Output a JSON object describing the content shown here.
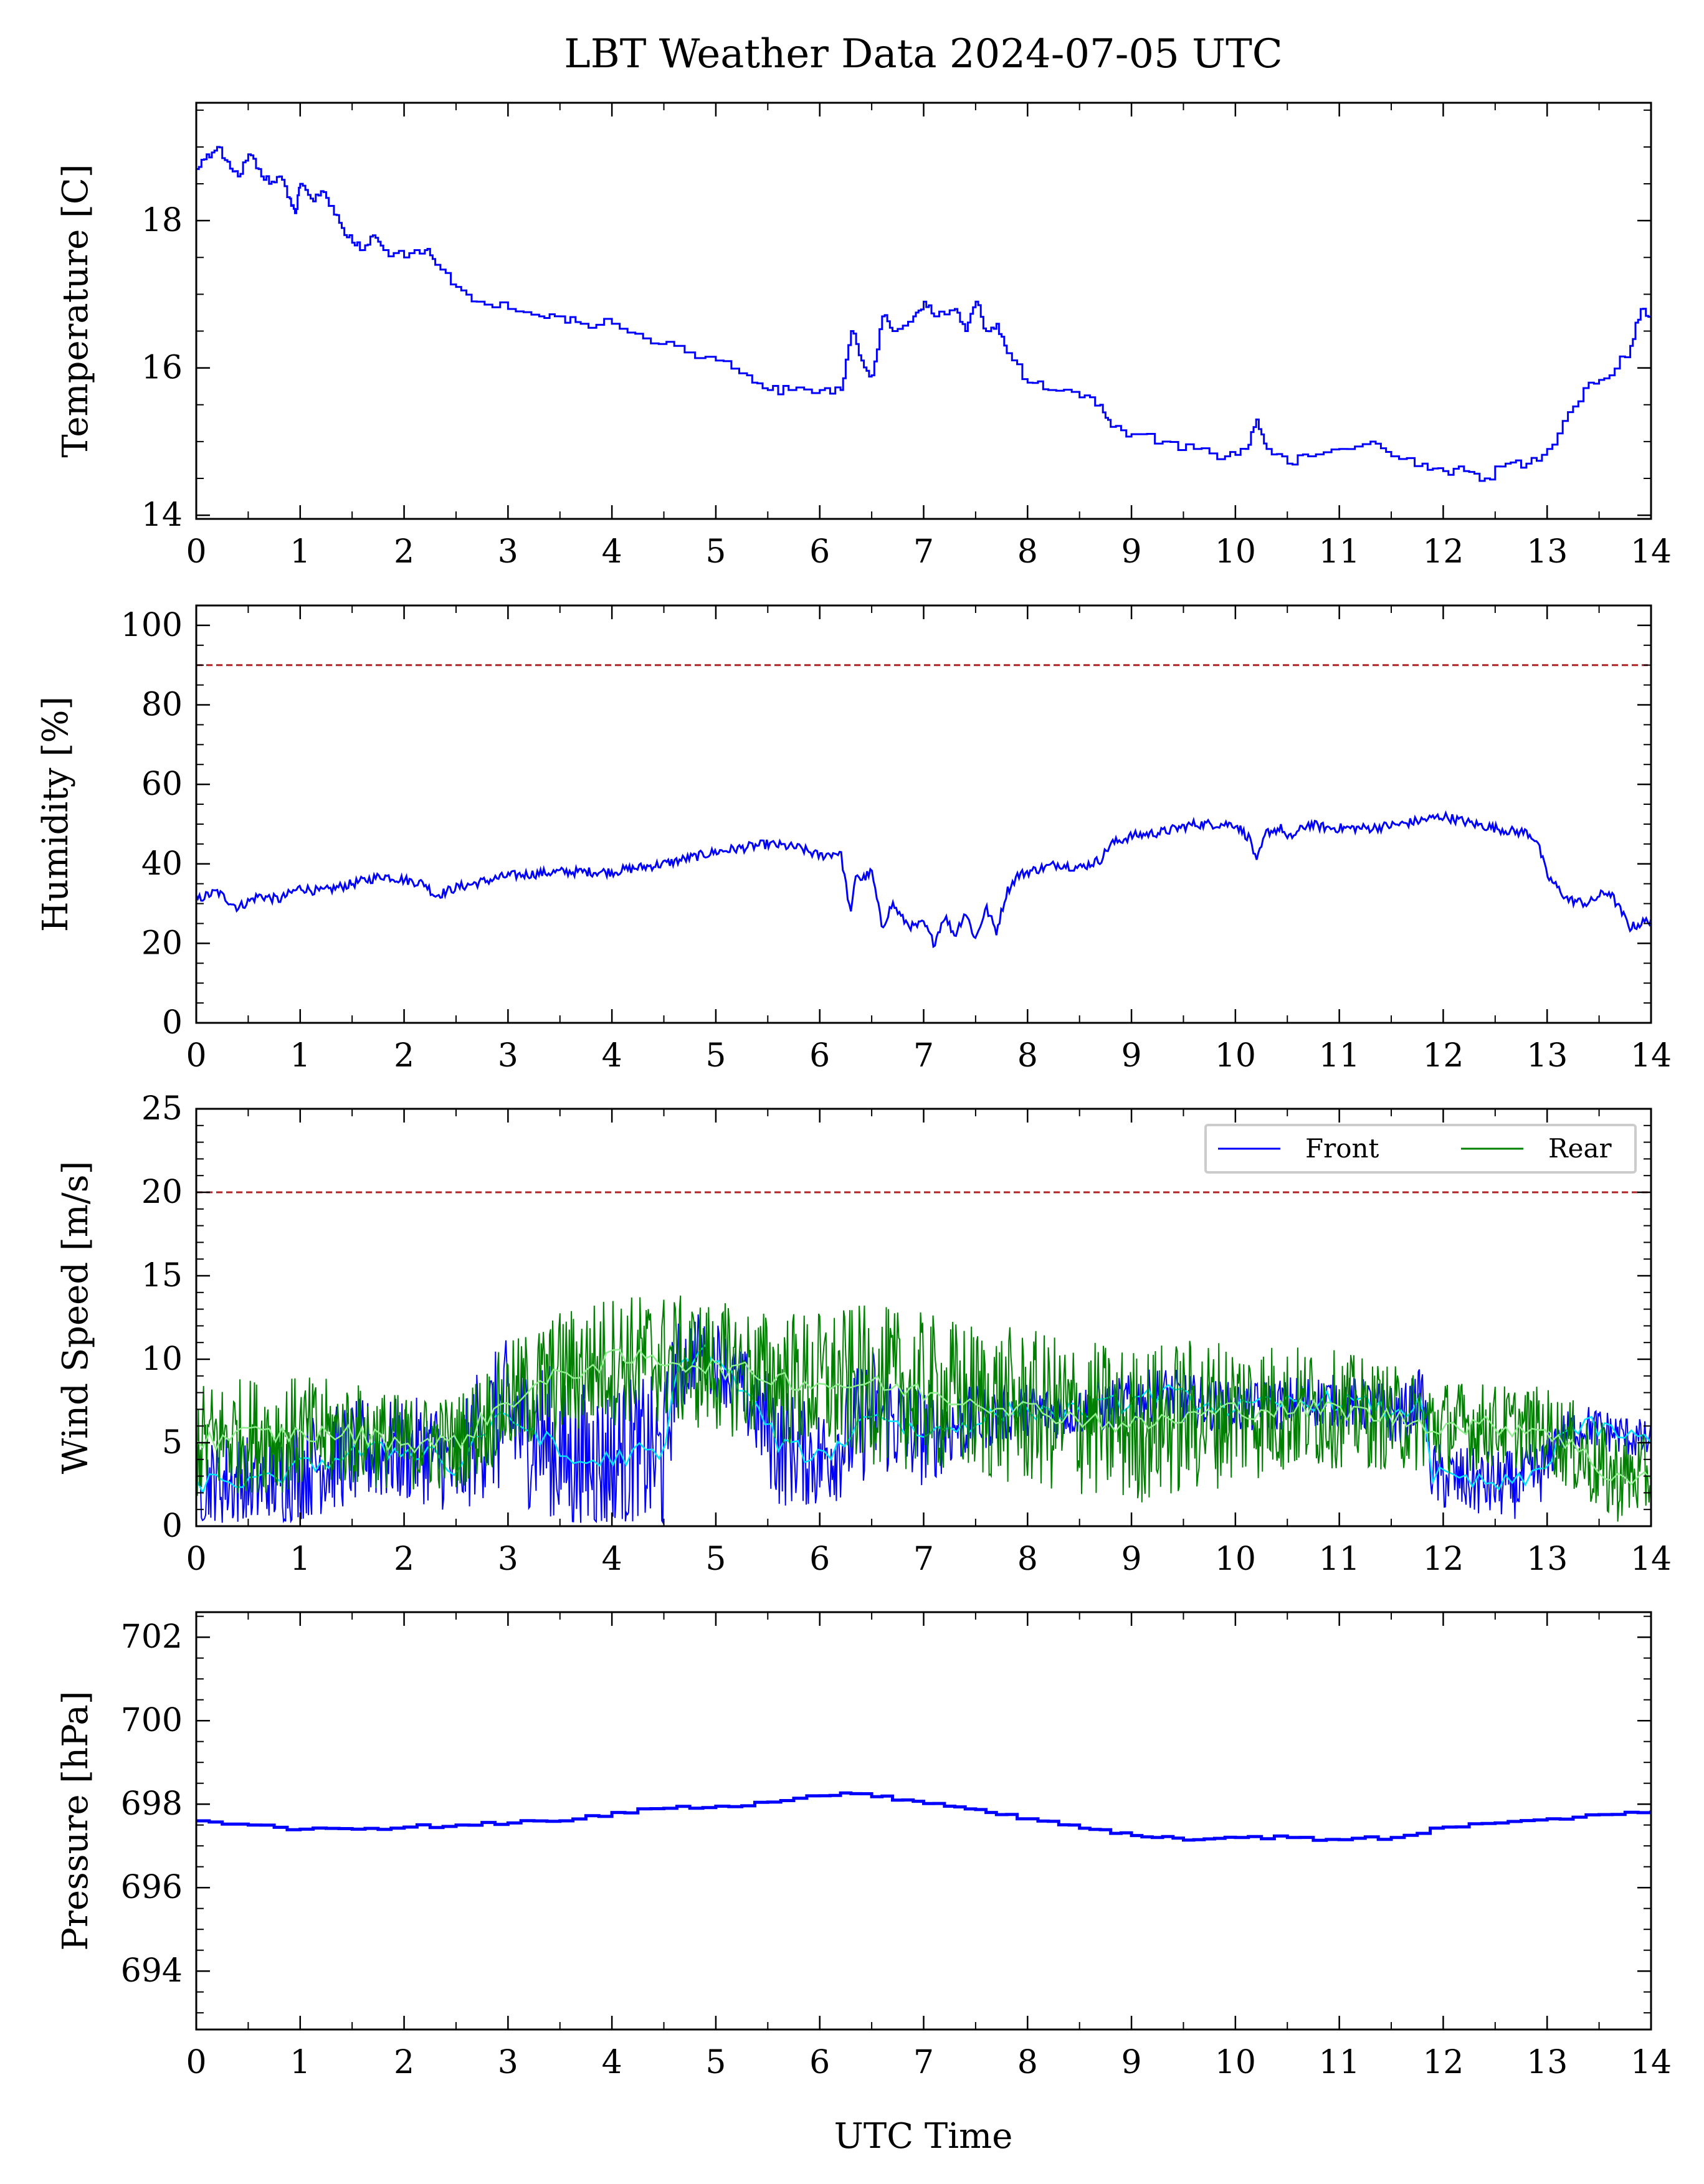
{
  "figure": {
    "title": "LBT Weather Data 2024-07-05 UTC",
    "xlabel": "UTC Time"
  },
  "colors": {
    "front": "#0000ff",
    "rear": "#008000",
    "front_smooth": "#00e5ff",
    "rear_smooth": "#90ee90",
    "threshold": "#b22222"
  },
  "chart_data": [
    {
      "type": "line",
      "id": "temperature",
      "ylabel": "Temperature [C]",
      "xlim": [
        0,
        14
      ],
      "ylim": [
        13.95,
        19.6
      ],
      "xticks": [
        "0",
        "1",
        "2",
        "3",
        "4",
        "5",
        "6",
        "7",
        "8",
        "9",
        "10",
        "11",
        "12",
        "13",
        "14"
      ],
      "yticks": [
        14,
        16,
        18
      ],
      "ytick_labels": [
        "14",
        "16",
        "18"
      ],
      "step": true,
      "series": [
        {
          "color": "front",
          "x": [
            0,
            0.1,
            0.2,
            0.3,
            0.4,
            0.5,
            0.6,
            0.7,
            0.8,
            0.9,
            0.95,
            1.0,
            1.1,
            1.2,
            1.3,
            1.4,
            1.5,
            1.6,
            1.7,
            1.8,
            2.0,
            2.2,
            2.3,
            2.5,
            2.7,
            3.0,
            3.3,
            3.5,
            3.7,
            4.0,
            4.3,
            4.6,
            5.0,
            5.3,
            5.5,
            5.7,
            6.0,
            6.2,
            6.3,
            6.4,
            6.5,
            6.6,
            6.7,
            6.9,
            7.0,
            7.1,
            7.3,
            7.4,
            7.5,
            7.6,
            7.7,
            7.8,
            8.0,
            8.2,
            8.5,
            8.7,
            8.8,
            9.0,
            9.3,
            9.6,
            9.9,
            10.1,
            10.2,
            10.3,
            10.5,
            10.7,
            11.0,
            11.3,
            11.5,
            11.8,
            12.0,
            12.2,
            12.4,
            12.6,
            12.8,
            13.0,
            13.2,
            13.4,
            13.6,
            13.8,
            13.9,
            14.0
          ],
          "y": [
            18.7,
            18.9,
            19.0,
            18.8,
            18.6,
            18.9,
            18.7,
            18.5,
            18.6,
            18.3,
            18.1,
            18.5,
            18.3,
            18.4,
            18.2,
            17.9,
            17.7,
            17.6,
            17.8,
            17.6,
            17.5,
            17.6,
            17.4,
            17.1,
            16.9,
            16.8,
            16.7,
            16.7,
            16.6,
            16.6,
            16.4,
            16.3,
            16.1,
            15.9,
            15.7,
            15.7,
            15.7,
            15.7,
            16.5,
            16.1,
            15.9,
            16.7,
            16.5,
            16.7,
            16.9,
            16.7,
            16.8,
            16.5,
            16.9,
            16.5,
            16.6,
            16.2,
            15.8,
            15.7,
            15.6,
            15.5,
            15.2,
            15.1,
            15.0,
            14.9,
            14.8,
            14.9,
            15.3,
            14.9,
            14.7,
            14.8,
            14.9,
            15.0,
            14.8,
            14.7,
            14.6,
            14.6,
            14.5,
            14.7,
            14.7,
            14.9,
            15.4,
            15.8,
            15.9,
            16.3,
            16.8,
            16.7
          ]
        }
      ],
      "hlines": []
    },
    {
      "type": "line",
      "id": "humidity",
      "ylabel": "Humidity [%]",
      "xlim": [
        0,
        14
      ],
      "ylim": [
        0,
        105
      ],
      "xticks": [
        "0",
        "1",
        "2",
        "3",
        "4",
        "5",
        "6",
        "7",
        "8",
        "9",
        "10",
        "11",
        "12",
        "13",
        "14"
      ],
      "yticks": [
        0,
        20,
        40,
        60,
        80,
        100
      ],
      "ytick_labels": [
        "0",
        "20",
        "40",
        "60",
        "80",
        "100"
      ],
      "series": [
        {
          "color": "front",
          "x": [
            0,
            0.2,
            0.4,
            0.6,
            0.8,
            1.0,
            1.2,
            1.5,
            1.8,
            2.0,
            2.2,
            2.3,
            2.5,
            3.0,
            3.5,
            4.0,
            4.5,
            5.0,
            5.5,
            5.8,
            6.0,
            6.2,
            6.3,
            6.35,
            6.4,
            6.5,
            6.55,
            6.6,
            6.7,
            6.8,
            6.9,
            7.0,
            7.1,
            7.2,
            7.3,
            7.4,
            7.5,
            7.6,
            7.7,
            7.8,
            7.9,
            8.0,
            8.3,
            8.5,
            8.7,
            8.8,
            9.0,
            9.3,
            9.6,
            10.0,
            10.15,
            10.2,
            10.3,
            10.45,
            10.5,
            10.7,
            10.9,
            11.0,
            11.3,
            11.6,
            11.8,
            12.0,
            12.3,
            12.5,
            12.7,
            12.8,
            12.9,
            13.0,
            13.2,
            13.4,
            13.5,
            13.6,
            13.8,
            14.0
          ],
          "y": [
            31,
            33,
            29,
            32,
            31,
            34,
            33,
            35,
            37,
            36,
            35,
            32,
            34,
            37,
            38,
            38,
            40,
            43,
            45,
            44,
            42,
            43,
            27,
            38,
            36,
            38,
            31,
            24,
            30,
            26,
            24,
            25,
            20,
            27,
            22,
            28,
            21,
            29,
            23,
            33,
            37,
            38,
            40,
            39,
            41,
            45,
            47,
            48,
            50,
            50,
            46,
            40,
            48,
            49,
            46,
            50,
            49,
            49,
            49,
            50,
            51,
            52,
            50,
            49,
            48,
            48,
            46,
            37,
            31,
            30,
            32,
            33,
            24,
            26
          ],
          "noise": true
        }
      ],
      "hlines": [
        90
      ]
    },
    {
      "type": "line",
      "id": "wind",
      "ylabel": "Wind Speed [m/s]",
      "xlim": [
        0,
        14
      ],
      "ylim": [
        0,
        25
      ],
      "xticks": [
        "0",
        "1",
        "2",
        "3",
        "4",
        "5",
        "6",
        "7",
        "8",
        "9",
        "10",
        "11",
        "12",
        "13",
        "14"
      ],
      "yticks": [
        0,
        5,
        10,
        15,
        20,
        25
      ],
      "ytick_labels": [
        "0",
        "5",
        "10",
        "15",
        "20",
        "25"
      ],
      "legend": {
        "position": "top-right",
        "entries": [
          "Front",
          "Rear"
        ]
      },
      "series": [
        {
          "name": "Front",
          "color": "front",
          "x": [
            0,
            0.3,
            0.6,
            1.0,
            1.3,
            1.6,
            2.0,
            2.3,
            2.5,
            2.7,
            3.0,
            3.3,
            3.6,
            4.0,
            4.3,
            4.5,
            4.6,
            4.8,
            5.0,
            5.2,
            5.4,
            5.6,
            5.8,
            6.0,
            6.3,
            6.5,
            6.8,
            7.0,
            7.3,
            7.6,
            8.0,
            8.3,
            8.6,
            9.0,
            9.3,
            9.6,
            10.0,
            10.3,
            10.6,
            11.0,
            11.3,
            11.6,
            11.8,
            11.9,
            12.1,
            12.4,
            12.7,
            13.0,
            13.1,
            13.4,
            13.7,
            14.0
          ],
          "y": [
            2.5,
            2.8,
            2.5,
            3.5,
            4.0,
            4.5,
            4.5,
            4.5,
            3.0,
            5.5,
            6.5,
            5.5,
            3.8,
            4.0,
            4.5,
            3.8,
            9.0,
            10.5,
            10.2,
            8.5,
            7.0,
            5.0,
            4.5,
            4.0,
            5.5,
            7.0,
            6.0,
            5.5,
            6.0,
            6.5,
            7.0,
            6.8,
            7.0,
            7.5,
            8.0,
            7.5,
            7.0,
            7.2,
            7.5,
            7.5,
            7.2,
            6.5,
            8.0,
            3.0,
            2.8,
            2.5,
            2.5,
            3.5,
            5.5,
            6.0,
            5.5,
            5.0
          ],
          "amp": [
            1.5,
            1.8,
            1.8,
            2.0,
            2.0,
            2.0,
            2.0,
            2.0,
            1.8,
            2.5,
            3.0,
            3.0,
            3.0,
            3.0,
            3.0,
            3.0,
            2.0,
            1.5,
            1.5,
            1.5,
            2.0,
            2.5,
            2.0,
            2.0,
            2.2,
            2.5,
            2.0,
            2.0,
            1.5,
            1.2,
            1.0,
            1.0,
            1.0,
            1.0,
            1.0,
            1.0,
            1.0,
            1.0,
            1.0,
            1.0,
            1.0,
            1.2,
            1.0,
            1.3,
            1.3,
            1.3,
            1.3,
            1.2,
            0.8,
            0.8,
            0.8,
            0.8
          ]
        },
        {
          "name": "Rear",
          "color": "rear",
          "x": [
            0,
            0.5,
            1.0,
            1.5,
            2.0,
            2.5,
            3.0,
            3.5,
            4.0,
            4.5,
            5.0,
            5.5,
            6.0,
            6.5,
            7.0,
            7.5,
            8.0,
            8.5,
            9.0,
            9.5,
            10.0,
            10.5,
            11.0,
            11.5,
            12.0,
            12.5,
            13.0,
            13.3,
            13.6,
            14.0
          ],
          "y": [
            5.0,
            5.5,
            5.5,
            5.5,
            5.0,
            5.0,
            7.5,
            9.0,
            10.0,
            10.0,
            9.5,
            9.0,
            8.5,
            8.5,
            8.0,
            7.5,
            7.0,
            6.5,
            6.0,
            6.5,
            7.0,
            7.0,
            7.0,
            6.5,
            6.0,
            6.0,
            5.8,
            4.5,
            3.0,
            3.0
          ],
          "amp": [
            2.2,
            2.2,
            2.2,
            2.0,
            1.8,
            1.8,
            2.2,
            2.5,
            2.5,
            2.5,
            2.5,
            2.5,
            2.8,
            3.0,
            3.0,
            3.0,
            3.0,
            3.0,
            3.0,
            3.0,
            2.8,
            2.5,
            2.2,
            2.0,
            1.8,
            1.6,
            1.6,
            1.8,
            1.8,
            1.5
          ]
        }
      ],
      "hlines": [
        20
      ]
    },
    {
      "type": "line",
      "id": "pressure",
      "ylabel": "Pressure [hPa]",
      "xlim": [
        0,
        14
      ],
      "ylim": [
        692.6,
        702.6
      ],
      "xticks": [
        "0",
        "1",
        "2",
        "3",
        "4",
        "5",
        "6",
        "7",
        "8",
        "9",
        "10",
        "11",
        "12",
        "13",
        "14"
      ],
      "yticks": [
        694,
        696,
        698,
        700,
        702
      ],
      "ytick_labels": [
        "694",
        "696",
        "698",
        "700",
        "702"
      ],
      "step": true,
      "series": [
        {
          "color": "front",
          "x": [
            0,
            0.5,
            1.0,
            1.5,
            2.0,
            2.5,
            3.0,
            3.5,
            4.0,
            4.5,
            5.0,
            5.5,
            6.0,
            6.4,
            6.8,
            7.2,
            7.6,
            8.0,
            8.4,
            8.8,
            9.2,
            9.6,
            10.0,
            10.5,
            11.0,
            11.5,
            12.0,
            12.5,
            13.0,
            13.5,
            14.0
          ],
          "y": [
            697.6,
            697.5,
            697.4,
            697.4,
            697.45,
            697.5,
            697.55,
            697.6,
            697.8,
            697.9,
            697.95,
            698.05,
            698.2,
            698.25,
            698.1,
            697.95,
            697.8,
            697.65,
            697.5,
            697.3,
            697.2,
            697.15,
            697.2,
            697.2,
            697.15,
            697.2,
            697.45,
            697.55,
            697.65,
            697.75,
            697.85
          ]
        }
      ],
      "hlines": []
    }
  ]
}
